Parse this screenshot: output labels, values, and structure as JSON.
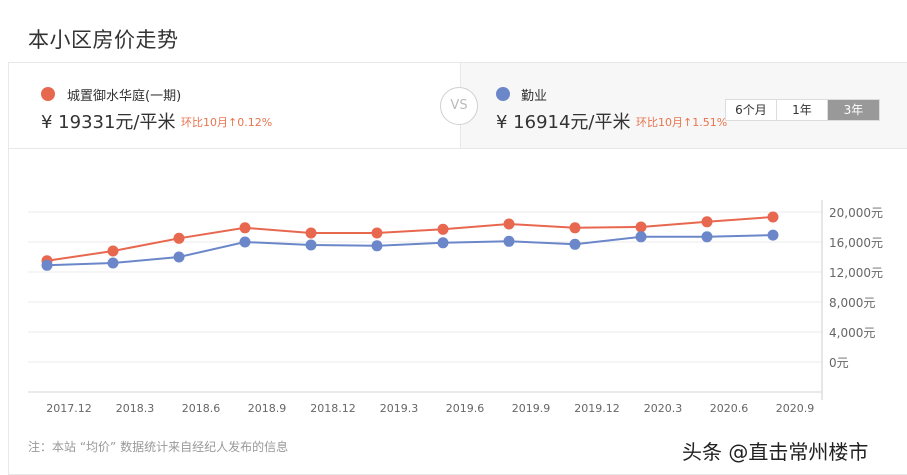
{
  "page": {
    "title": "本小区房价走势",
    "footnote": "注：本站 “均价” 数据统计来自经纪人发布的信息",
    "watermark": "头条 @直击常州楼市"
  },
  "compare": {
    "left": {
      "name": "城置御水华庭(一期)",
      "color": "#e8674f",
      "price": "¥ 19331元/平米",
      "mom": "环比10月↑0.12%"
    },
    "vs_label": "VS",
    "right": {
      "name": "勤业",
      "color": "#6b87c9",
      "price": "¥ 16914元/平米",
      "mom": "环比10月↑1.51%"
    }
  },
  "range_tabs": [
    {
      "label": "6个月",
      "active": false
    },
    {
      "label": "1年",
      "active": false
    },
    {
      "label": "3年",
      "active": true
    }
  ],
  "colors": {
    "series_a": "#e8674f",
    "series_b": "#6b87c9",
    "grid": "#ebebeb",
    "axis": "#cccccc",
    "tick_text": "#666666",
    "highlight": "#e8744f"
  },
  "chart_data": {
    "type": "line",
    "title": "本小区房价走势",
    "xlabel": "",
    "ylabel": "",
    "categories": [
      "2017.12",
      "2018.3",
      "2018.6",
      "2018.9",
      "2018.12",
      "2019.3",
      "2019.6",
      "2019.9",
      "2019.12",
      "2020.3",
      "2020.6",
      "2020.9"
    ],
    "series": [
      {
        "name": "城置御水华庭(一期)",
        "color": "#e8674f",
        "values": [
          13500,
          14800,
          16500,
          17900,
          17200,
          17200,
          17700,
          18400,
          17900,
          18000,
          18700,
          19331
        ]
      },
      {
        "name": "勤业",
        "color": "#6b87c9",
        "values": [
          12900,
          13200,
          14000,
          16000,
          15600,
          15500,
          15900,
          16100,
          15700,
          16700,
          16700,
          16914
        ]
      }
    ],
    "y_ticks": [
      "20,000元",
      "16,000元",
      "12,000元",
      "8,000元",
      "4,000元",
      "0元"
    ],
    "y_tick_values": [
      20000,
      16000,
      12000,
      8000,
      4000,
      0
    ],
    "ylim": [
      0,
      20000
    ],
    "grid": true,
    "y_axis_position": "right",
    "legend_position": "top (compare header)"
  }
}
